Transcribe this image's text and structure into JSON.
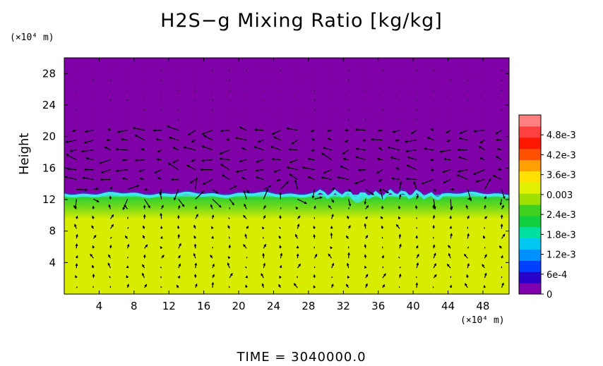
{
  "colors": {
    "top_layer": "#7e00a6",
    "bottom_layer": "#d8ec00",
    "interface_mid": "#30d030",
    "interface_light": "#40e8e8",
    "interface_dark": "#2040c8"
  },
  "chart_data": {
    "type": "heatmap",
    "title": "H2S−g Mixing Ratio [kg/kg]",
    "ylabel": "Height",
    "x_unit_label": "(×10⁴ m)",
    "y_unit_label": "(×10⁴ m)",
    "time_label": "TIME  =  3040000.0",
    "xlim": [
      0,
      51
    ],
    "ylim": [
      0,
      30
    ],
    "x_ticks": [
      4,
      8,
      12,
      16,
      20,
      24,
      28,
      32,
      36,
      40,
      44,
      48
    ],
    "y_ticks": [
      4,
      8,
      12,
      16,
      20,
      24,
      28
    ],
    "interface_height": 12.6,
    "colorbar": {
      "labels": [
        "0",
        "6e-4",
        "1.2e-3",
        "1.8e-3",
        "2.4e-3",
        "0.003",
        "3.6e-3",
        "4.2e-3",
        "4.8e-3"
      ],
      "range": [
        0,
        0.0054
      ],
      "colors": [
        "#8000b0",
        "#2a00c8",
        "#0040ff",
        "#0090ff",
        "#00c8f0",
        "#00e0a0",
        "#10d040",
        "#40d020",
        "#a0e000",
        "#e0f000",
        "#ffe000",
        "#ffa000",
        "#ff5000",
        "#ff1800",
        "#ff4040",
        "#ff8080"
      ]
    },
    "regions": [
      {
        "name": "upper layer",
        "y_range": [
          12.6,
          30
        ],
        "value": 0
      },
      {
        "name": "lower layer",
        "y_range": [
          0,
          9.5
        ],
        "value": 0.0036
      }
    ]
  }
}
